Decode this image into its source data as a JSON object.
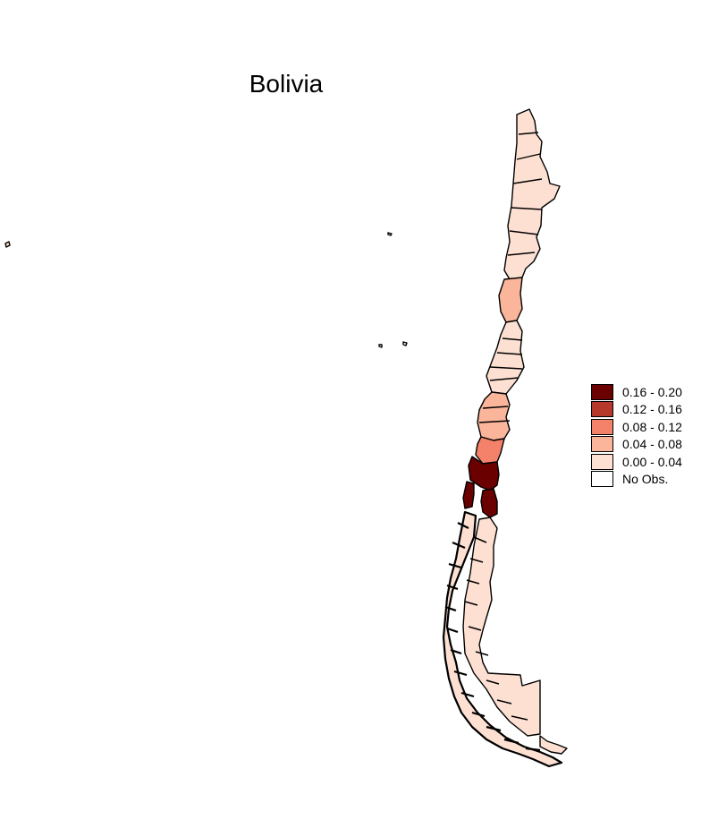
{
  "title": "Bolivia",
  "legend": {
    "items": [
      {
        "label": "0.16 - 0.20",
        "color": "#6b0000"
      },
      {
        "label": "0.12 - 0.16",
        "color": "#b5382a"
      },
      {
        "label": "0.08 - 0.12",
        "color": "#f4826a"
      },
      {
        "label": "0.04 - 0.08",
        "color": "#fbb59b"
      },
      {
        "label": "0.00 - 0.04",
        "color": "#fde0d2"
      },
      {
        "label": "No Obs.",
        "color": "#ffffff"
      }
    ]
  }
}
